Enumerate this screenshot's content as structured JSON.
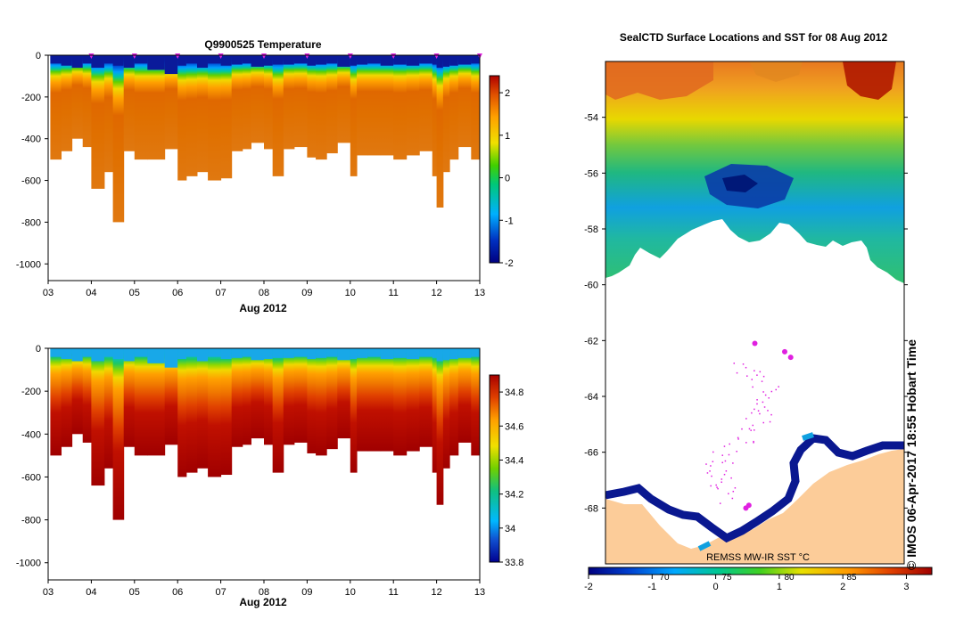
{
  "chart_data": [
    {
      "type": "heatmap",
      "title": "Q9900525  Temperature",
      "xlabel": "Aug 2012",
      "ylabel": "",
      "x_ticks": [
        "03",
        "04",
        "05",
        "06",
        "07",
        "08",
        "09",
        "10",
        "11",
        "12",
        "13"
      ],
      "y_ticks": [
        "0",
        "-200",
        "-400",
        "-600",
        "-800",
        "-1000"
      ],
      "xlim": [
        3,
        13
      ],
      "ylim": [
        -1080,
        0
      ],
      "colorbar": {
        "min": -2,
        "max": 2.4,
        "ticks": [
          "2",
          "1",
          "0",
          "-1",
          "-2"
        ]
      },
      "profile_times": [
        3.05,
        3.3,
        3.55,
        3.8,
        4.0,
        4.3,
        4.5,
        4.75,
        5.0,
        5.3,
        5.7,
        6.0,
        6.2,
        6.45,
        6.7,
        7.0,
        7.25,
        7.5,
        7.7,
        8.0,
        8.2,
        8.45,
        8.7,
        9.0,
        9.2,
        9.45,
        9.7,
        10.0,
        10.15,
        10.4,
        10.7,
        11.0,
        11.3,
        11.6,
        11.9,
        12.0,
        12.15,
        12.3,
        12.5,
        12.8
      ],
      "profile_max_depth": [
        -500,
        -460,
        -400,
        -440,
        -640,
        -560,
        -800,
        -460,
        -500,
        -500,
        -450,
        -600,
        -580,
        -560,
        -600,
        -590,
        -460,
        -450,
        -420,
        -450,
        -580,
        -450,
        -440,
        -490,
        -500,
        -470,
        -420,
        -580,
        -480,
        -480,
        -480,
        -500,
        -480,
        -460,
        -580,
        -730,
        -560,
        -500,
        -440,
        -500
      ],
      "surface_layer_depth": [
        -40,
        -50,
        -60,
        -40,
        -60,
        -40,
        -50,
        -60,
        -40,
        -70,
        -90,
        -50,
        -40,
        -60,
        -40,
        -50,
        -45,
        -40,
        -55,
        -50,
        -45,
        -45,
        -40,
        -50,
        -45,
        -40,
        -55,
        -50,
        -45,
        -40,
        -50,
        -45,
        -50,
        -40,
        -45,
        -60,
        -55,
        -50,
        -45,
        -40
      ],
      "markers": [
        4,
        5,
        6,
        7,
        8,
        9,
        10,
        11,
        12,
        13
      ]
    },
    {
      "type": "heatmap",
      "title": "",
      "xlabel": "Aug 2012",
      "ylabel": "",
      "x_ticks": [
        "03",
        "04",
        "05",
        "06",
        "07",
        "08",
        "09",
        "10",
        "11",
        "12",
        "13"
      ],
      "y_ticks": [
        "0",
        "-200",
        "-400",
        "-600",
        "-800",
        "-1000"
      ],
      "xlim": [
        3,
        13
      ],
      "ylim": [
        -1080,
        0
      ],
      "colorbar": {
        "min": 33.8,
        "max": 34.9,
        "ticks": [
          "34.8",
          "34.6",
          "34.4",
          "34.2",
          "34",
          "33.8"
        ]
      }
    },
    {
      "type": "heatmap",
      "title": "SealCTD Surface Locations and SST for 08 Aug 2012",
      "xlabel": "",
      "ylabel": "",
      "y_ticks": [
        "-54",
        "-56",
        "-58",
        "-60",
        "-62",
        "-64",
        "-66",
        "-68"
      ],
      "ylim": [
        -70,
        -52
      ],
      "colorbar": {
        "min": -2,
        "max": 3.4,
        "ticks": [
          "-2",
          "-1",
          "0",
          "1",
          "2",
          "3"
        ],
        "inner_labels": [
          "70",
          "75",
          "80",
          "85"
        ]
      },
      "source_label": "REMSS MW-IR SST °C",
      "locations": [
        {
          "lat": -62.1,
          "x": 0.5
        },
        {
          "lat": -62.4,
          "x": 0.6
        },
        {
          "lat": -62.6,
          "x": 0.62
        },
        {
          "lat": -67.9,
          "x": 0.48
        },
        {
          "lat": -68.0,
          "x": 0.47
        }
      ]
    }
  ],
  "credit": "© IMOS 06-Apr-2017 18:55 Hobart Time",
  "colors": {
    "marker": "#e020e0",
    "land": "#fccc99",
    "ice_edge": "#0a1890"
  }
}
